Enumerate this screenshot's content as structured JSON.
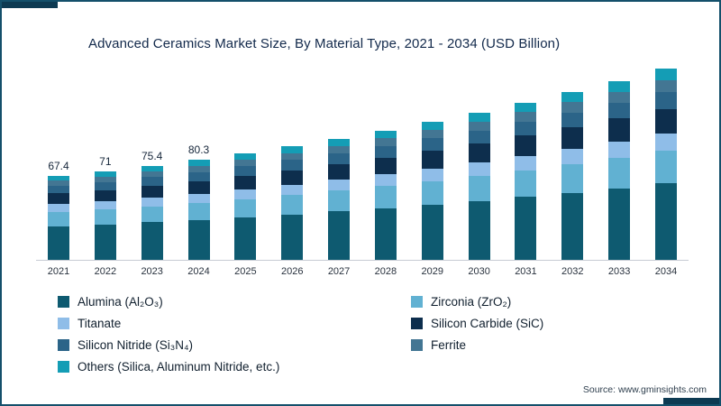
{
  "title": "Advanced Ceramics Market Size, By Material Type, 2021 - 2034 (USD Billion)",
  "source": "Source: www.gminsights.com",
  "chart_data": {
    "type": "bar",
    "stacked": true,
    "title": "Advanced Ceramics Market Size, By Material Type, 2021 - 2034 (USD Billion)",
    "xlabel": "",
    "ylabel": "USD Billion",
    "ylim": [
      0,
      160
    ],
    "grid": false,
    "legend_position": "bottom",
    "categories": [
      "2021",
      "2022",
      "2023",
      "2024",
      "2025",
      "2026",
      "2027",
      "2028",
      "2029",
      "2030",
      "2031",
      "2032",
      "2033",
      "2034"
    ],
    "totals": [
      67.4,
      71,
      75.4,
      80.3,
      85.6,
      91.3,
      97.4,
      103.9,
      110.9,
      118.3,
      126.3,
      134.8,
      143.8,
      153.5
    ],
    "value_labels": {
      "2021": "67.4",
      "2022": "71",
      "2023": "75.4",
      "2024": "80.3"
    },
    "series": [
      {
        "name": "Alumina (Al₂O₃)",
        "color": "#0E5A70",
        "values": [
          27.0,
          28.4,
          30.2,
          32.1,
          34.2,
          36.5,
          39.0,
          41.6,
          44.4,
          47.3,
          50.5,
          53.9,
          57.5,
          61.4
        ]
      },
      {
        "name": "Zirconia (ZrO₂)",
        "color": "#61B1D2",
        "values": [
          11.5,
          12.1,
          12.8,
          13.7,
          14.6,
          15.5,
          16.6,
          17.7,
          18.9,
          20.1,
          21.5,
          22.9,
          24.4,
          26.1
        ]
      },
      {
        "name": "Titanate",
        "color": "#8FBDE8",
        "values": [
          6.1,
          6.4,
          6.8,
          7.2,
          7.7,
          8.2,
          8.8,
          9.4,
          10.0,
          10.6,
          11.4,
          12.1,
          12.9,
          13.8
        ]
      },
      {
        "name": "Silicon Carbide (SiC)",
        "color": "#0D2E4D",
        "values": [
          8.8,
          9.2,
          9.8,
          10.4,
          11.1,
          11.9,
          12.7,
          13.5,
          14.4,
          15.4,
          16.4,
          17.5,
          18.7,
          20.0
        ]
      },
      {
        "name": "Silicon Nitride (Si₃N₄)",
        "color": "#2B6488",
        "values": [
          6.1,
          6.4,
          6.8,
          7.2,
          7.7,
          8.2,
          8.8,
          9.4,
          10.0,
          10.6,
          11.4,
          12.1,
          12.9,
          13.8
        ]
      },
      {
        "name": "Ferrite",
        "color": "#437693",
        "values": [
          4.0,
          4.3,
          4.5,
          4.8,
          5.1,
          5.5,
          5.8,
          6.2,
          6.7,
          7.1,
          7.6,
          8.1,
          8.6,
          9.2
        ]
      },
      {
        "name": "Others (Silica, Aluminum Nitride, etc.)",
        "color": "#149DB5",
        "values": [
          3.9,
          4.2,
          4.5,
          4.9,
          5.2,
          5.5,
          5.7,
          6.1,
          6.5,
          7.2,
          7.5,
          8.2,
          8.8,
          9.2
        ]
      }
    ]
  }
}
